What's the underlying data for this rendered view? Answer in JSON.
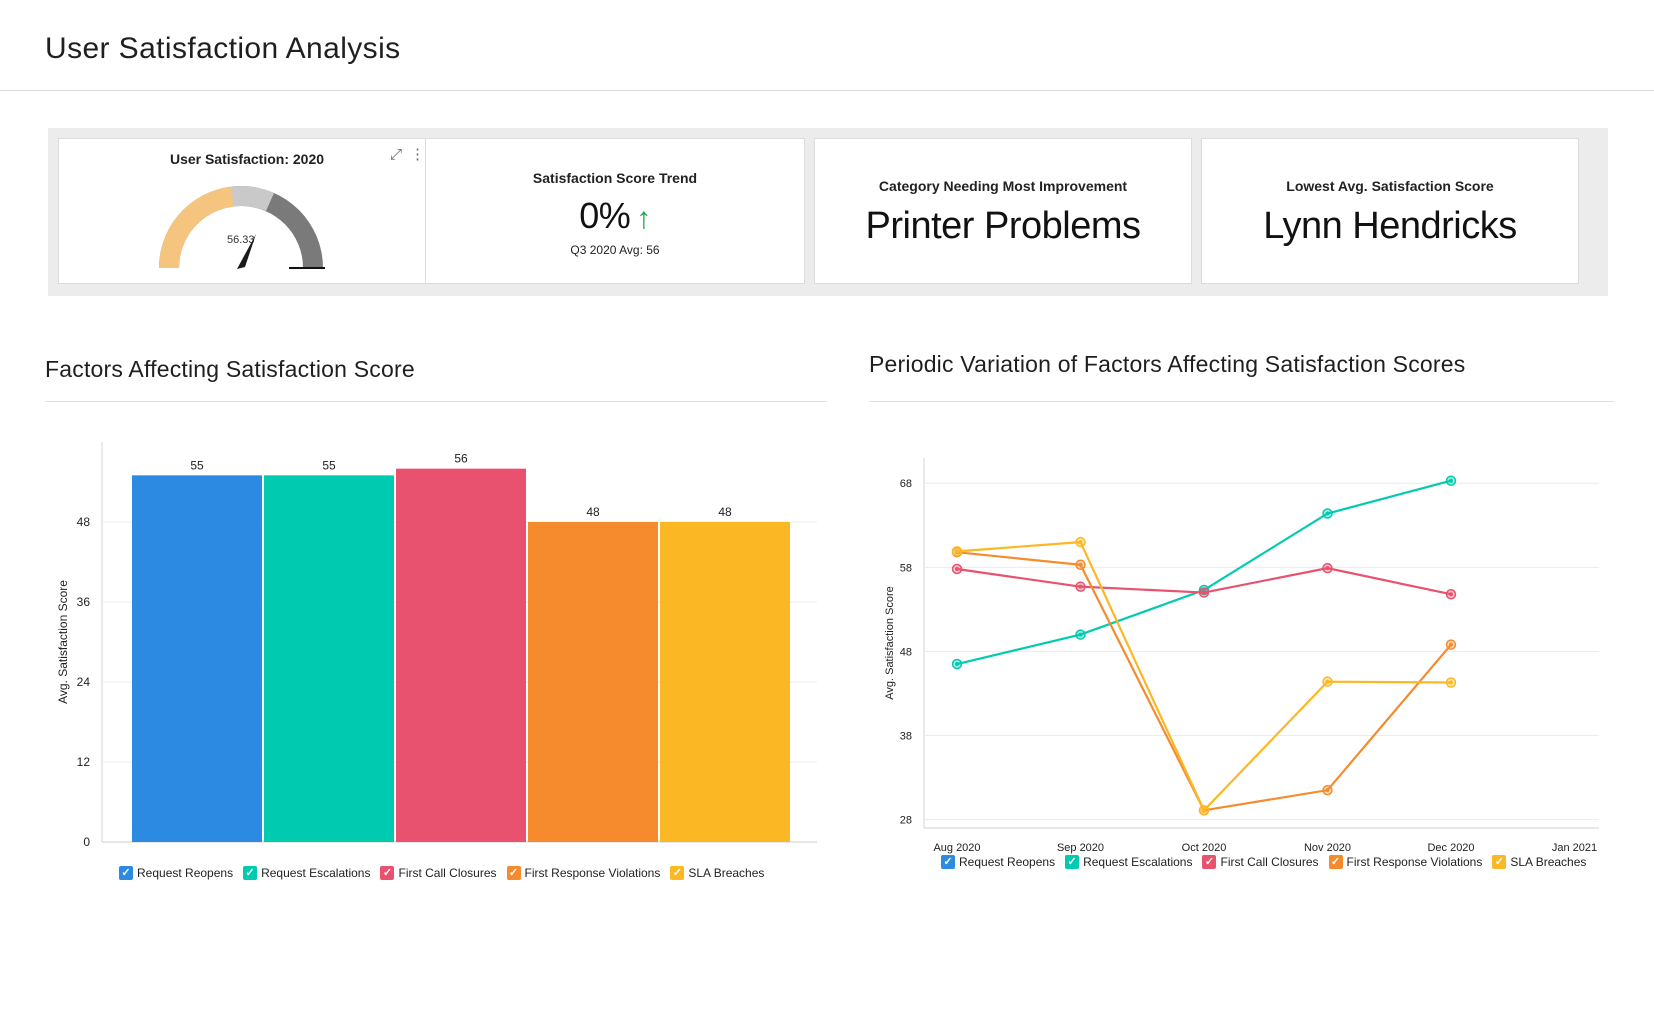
{
  "page": {
    "title": "User Satisfaction Analysis"
  },
  "kpis": {
    "gauge": {
      "title": "User Satisfaction: 2020",
      "value_label": "56.33",
      "value": 56.33,
      "min": 0,
      "max": 100,
      "expand_icon": "expand-icon",
      "menu_icon": "more-vertical-icon"
    },
    "trend": {
      "title": "Satisfaction Score Trend",
      "value": "0%",
      "arrow": "↑",
      "sub": "Q3 2020 Avg: 56"
    },
    "category": {
      "title": "Category Needing Most Improvement",
      "value": "Printer Problems"
    },
    "lowest": {
      "title": "Lowest Avg. Satisfaction Score",
      "value": "Lynn Hendricks"
    }
  },
  "sections": {
    "bar_title": "Factors Affecting Satisfaction Score",
    "line_title": "Periodic Variation of Factors Affecting Satisfaction Scores"
  },
  "colors": {
    "Request Reopens": "#2d8ae2",
    "Request Escalations": "#00cbb0",
    "First Call Closures": "#e8526f",
    "First Response Violations": "#f58b2c",
    "SLA Breaches": "#fbb824"
  },
  "chart_data": [
    {
      "type": "bar",
      "categories": [
        "Request Reopens",
        "Request Escalations",
        "First Call Closures",
        "First Response Violations",
        "SLA Breaches"
      ],
      "values": [
        55,
        55,
        56,
        48,
        48
      ],
      "data_labels": [
        "55",
        "55",
        "56",
        "48",
        "48"
      ],
      "ylabel": "Avg. Satisfaction Score",
      "yticks": [
        0,
        12,
        24,
        36,
        48
      ],
      "ylim": [
        0,
        60
      ],
      "grid": true,
      "legend": "bottom",
      "legend_labels": [
        "Request Reopens",
        "Request Escalations",
        "First Call Closures",
        "First Response Violations",
        "SLA Breaches"
      ]
    },
    {
      "type": "line",
      "x": [
        "Aug 2020",
        "Sep 2020",
        "Oct 2020",
        "Nov 2020",
        "Dec 2020"
      ],
      "xticks": [
        "Aug 2020",
        "Sep 2020",
        "Oct 2020",
        "Nov 2020",
        "Dec 2020",
        "Jan 2021"
      ],
      "ylabel": "Avg. Satisfaction Score",
      "yticks": [
        28,
        38,
        48,
        58,
        68
      ],
      "ylim": [
        27,
        71
      ],
      "grid": true,
      "legend": "bottom",
      "series": [
        {
          "name": "Request Reopens",
          "values": [
            null,
            null,
            null,
            null,
            null
          ]
        },
        {
          "name": "Request Escalations",
          "values": [
            46.5,
            50,
            55.3,
            64.4,
            68.3
          ]
        },
        {
          "name": "First Call Closures",
          "values": [
            57.8,
            55.7,
            55,
            57.9,
            54.8
          ]
        },
        {
          "name": "First Response Violations",
          "values": [
            59.8,
            58.3,
            29.1,
            31.5,
            48.8
          ]
        },
        {
          "name": "SLA Breaches",
          "values": [
            59.9,
            61,
            29.1,
            44.4,
            44.3
          ]
        }
      ]
    }
  ]
}
